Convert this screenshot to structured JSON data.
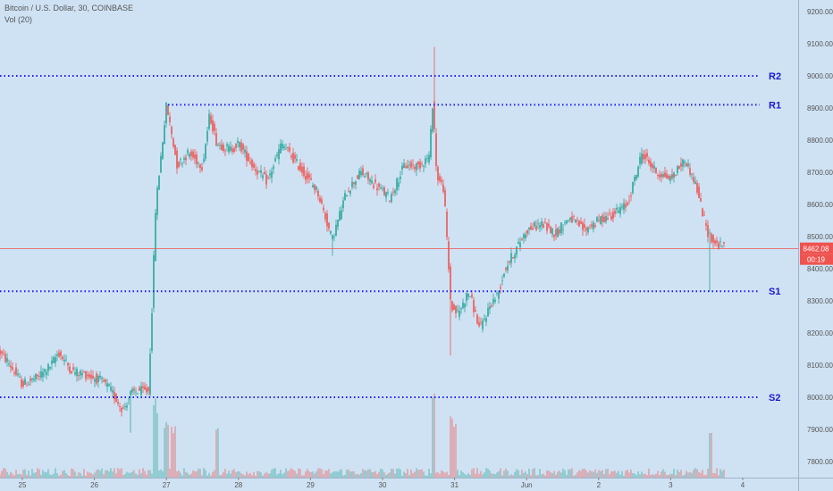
{
  "header": {
    "symbol_line": "Bitcoin / U.S. Dollar, 30, COINBASE",
    "volume_line": "Vol (20)"
  },
  "price_tag": {
    "value": "8462.08",
    "countdown": "00:19"
  },
  "colors": {
    "background": "#cfe2f3",
    "up": "#26a69a",
    "down": "#ef5350",
    "level_line": "#1a1aff",
    "level_label": "#1a1ad0",
    "price_line": "#ef5350"
  },
  "chart_data": {
    "type": "candlestick",
    "y_ticks": [
      7800,
      7900,
      8000,
      8100,
      8200,
      8300,
      8400,
      8500,
      8600,
      8700,
      8800,
      8900,
      9000,
      9100,
      9200
    ],
    "ylim": [
      7770,
      9240
    ],
    "x_ticks": [
      "25",
      "26",
      "27",
      "28",
      "29",
      "30",
      "31",
      "Jun",
      "2",
      "3",
      "4"
    ],
    "current_price": 8462.08,
    "levels": [
      {
        "label": "R2",
        "value": 9000
      },
      {
        "label": "R1",
        "value": 8910
      },
      {
        "label": "S1",
        "value": 8330
      },
      {
        "label": "S2",
        "value": 8000
      }
    ],
    "price_path": [
      [
        24.6,
        8160
      ],
      [
        24.8,
        8110
      ],
      [
        25.0,
        8040
      ],
      [
        25.2,
        8060
      ],
      [
        25.4,
        8100
      ],
      [
        25.5,
        8140
      ],
      [
        25.7,
        8080
      ],
      [
        25.9,
        8070
      ],
      [
        26.1,
        8050
      ],
      [
        26.2,
        8030
      ],
      [
        26.4,
        7960
      ],
      [
        26.5,
        8010
      ],
      [
        26.6,
        8020
      ],
      [
        26.75,
        8020
      ],
      [
        26.8,
        8280
      ],
      [
        26.85,
        8590
      ],
      [
        26.9,
        8700
      ],
      [
        27.0,
        8910
      ],
      [
        27.15,
        8720
      ],
      [
        27.3,
        8760
      ],
      [
        27.5,
        8720
      ],
      [
        27.6,
        8880
      ],
      [
        27.7,
        8790
      ],
      [
        27.9,
        8770
      ],
      [
        28.0,
        8790
      ],
      [
        28.2,
        8720
      ],
      [
        28.4,
        8670
      ],
      [
        28.6,
        8790
      ],
      [
        28.9,
        8700
      ],
      [
        29.1,
        8640
      ],
      [
        29.3,
        8490
      ],
      [
        29.5,
        8640
      ],
      [
        29.7,
        8700
      ],
      [
        29.9,
        8660
      ],
      [
        30.1,
        8620
      ],
      [
        30.3,
        8720
      ],
      [
        30.5,
        8720
      ],
      [
        30.65,
        8750
      ],
      [
        30.7,
        8930
      ],
      [
        30.75,
        8690
      ],
      [
        30.85,
        8650
      ],
      [
        30.95,
        8280
      ],
      [
        31.05,
        8260
      ],
      [
        31.2,
        8330
      ],
      [
        31.35,
        8210
      ],
      [
        31.5,
        8290
      ],
      [
        31.6,
        8320
      ],
      [
        31.7,
        8400
      ],
      [
        31.85,
        8460
      ],
      [
        32.0,
        8520
      ],
      [
        32.2,
        8540
      ],
      [
        32.4,
        8510
      ],
      [
        32.6,
        8560
      ],
      [
        32.8,
        8520
      ],
      [
        33.0,
        8550
      ],
      [
        33.2,
        8570
      ],
      [
        33.4,
        8600
      ],
      [
        33.6,
        8760
      ],
      [
        33.8,
        8700
      ],
      [
        34.0,
        8680
      ],
      [
        34.2,
        8740
      ],
      [
        34.35,
        8660
      ],
      [
        34.5,
        8520
      ],
      [
        34.6,
        8480
      ],
      [
        34.7,
        8470
      ]
    ],
    "volume_spikes": [
      [
        26.85,
        0.85
      ],
      [
        27.0,
        0.5
      ],
      [
        27.1,
        0.4
      ],
      [
        27.7,
        0.45
      ],
      [
        30.7,
        1.0
      ],
      [
        30.95,
        0.6
      ],
      [
        31.0,
        0.45
      ],
      [
        34.55,
        0.3
      ]
    ]
  }
}
